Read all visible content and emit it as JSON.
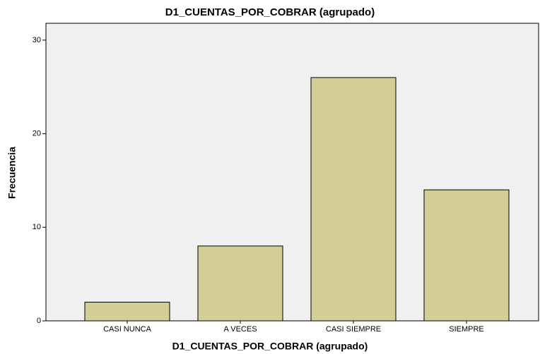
{
  "chart_data": {
    "type": "bar",
    "title": "D1_CUENTAS_POR_COBRAR (agrupado)",
    "x_label": "D1_CUENTAS_POR_COBRAR (agrupado)",
    "y_label": "Frecuencia",
    "categories": [
      "CASI NUNCA",
      "A VECES",
      "CASI SIEMPRE",
      "SIEMPRE"
    ],
    "values": [
      2,
      8,
      26,
      14
    ],
    "color": "#d3ce97",
    "ylim": [
      0,
      31.8
    ],
    "yticks": [
      0,
      10,
      20,
      30
    ],
    "grid": false
  }
}
